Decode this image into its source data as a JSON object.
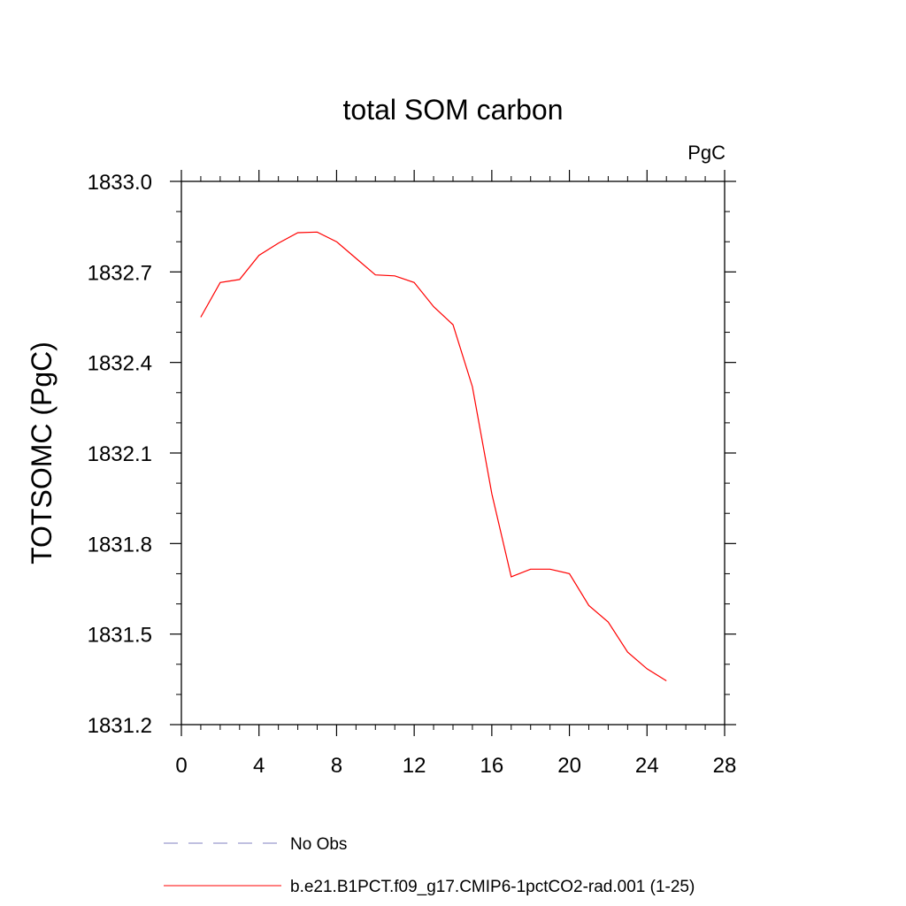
{
  "chart_data": {
    "type": "line",
    "title": "total SOM carbon",
    "units": "PgC",
    "ylabel": "TOTSOMC  (PgC)",
    "xlabel": "",
    "xlim": [
      0,
      28
    ],
    "ylim": [
      1831.2,
      1833.0
    ],
    "xticks": [
      "0",
      "4",
      "8",
      "12",
      "16",
      "20",
      "24",
      "28"
    ],
    "yticks": [
      "1833.0",
      "1832.7",
      "1832.4",
      "1832.1",
      "1831.8",
      "1831.5",
      "1831.2"
    ],
    "grid": false,
    "legend_position": "bottom",
    "series": [
      {
        "name": "b.e21.B1PCT.f09_g17.CMIP6-1pctCO2-rad.001 (1-25)",
        "color": "#ff0000",
        "style": "solid",
        "x": [
          1,
          2,
          3,
          4,
          5,
          6,
          7,
          8,
          9,
          10,
          11,
          12,
          13,
          14,
          15,
          16,
          17,
          18,
          19,
          20,
          21,
          22,
          23,
          24,
          25
        ],
        "y": [
          1832.55,
          1832.665,
          1832.675,
          1832.755,
          1832.795,
          1832.83,
          1832.832,
          1832.8,
          1832.745,
          1832.69,
          1832.687,
          1832.665,
          1832.585,
          1832.525,
          1832.32,
          1831.965,
          1831.69,
          1831.715,
          1831.715,
          1831.7,
          1831.595,
          1831.54,
          1831.44,
          1831.385,
          1831.345
        ]
      }
    ],
    "legend": [
      {
        "label": "No Obs",
        "color": "#8080c0",
        "style": "dashed"
      },
      {
        "label": "b.e21.B1PCT.f09_g17.CMIP6-1pctCO2-rad.001 (1-25)",
        "color": "#ff0000",
        "style": "solid"
      }
    ]
  }
}
